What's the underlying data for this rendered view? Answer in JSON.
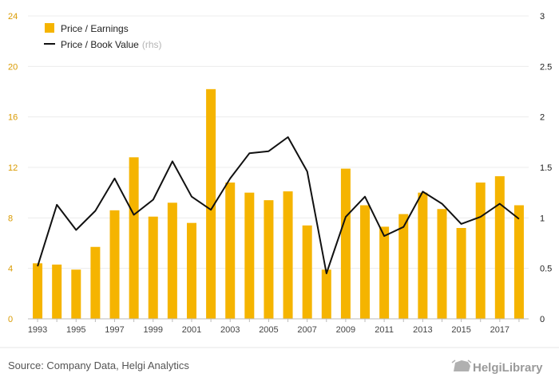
{
  "chart_data": {
    "type": "bar",
    "categories": [
      "1993",
      "1994",
      "1995",
      "1996",
      "1997",
      "1998",
      "1999",
      "2000",
      "2001",
      "2002",
      "2003",
      "2004",
      "2005",
      "2006",
      "2007",
      "2008",
      "2009",
      "2010",
      "2011",
      "2012",
      "2013",
      "2014",
      "2015",
      "2016",
      "2017",
      "2018"
    ],
    "x_tick_labels": [
      "1993",
      "1995",
      "1997",
      "1999",
      "2001",
      "2003",
      "2005",
      "2007",
      "2009",
      "2011",
      "2013",
      "2015",
      "2017"
    ],
    "series": [
      {
        "name": "Price / Earnings",
        "type": "bar",
        "axis": "left",
        "color": "#f5b400",
        "values": [
          4.4,
          4.3,
          3.9,
          5.7,
          8.6,
          12.8,
          8.1,
          9.2,
          7.6,
          18.2,
          10.8,
          10.0,
          9.4,
          10.1,
          7.4,
          3.9,
          11.9,
          9.0,
          7.3,
          8.3,
          10.0,
          8.7,
          7.2,
          10.8,
          11.3,
          9.0
        ]
      },
      {
        "name": "Price / Book Value",
        "legend_suffix": "(rhs)",
        "type": "line",
        "axis": "right",
        "color": "#111111",
        "values": [
          0.52,
          1.13,
          0.88,
          1.07,
          1.39,
          1.03,
          1.18,
          1.56,
          1.21,
          1.08,
          1.39,
          1.64,
          1.66,
          1.8,
          1.46,
          0.45,
          1.01,
          1.21,
          0.82,
          0.91,
          1.26,
          1.14,
          0.94,
          1.01,
          1.14,
          0.99
        ]
      }
    ],
    "y_left": {
      "ylim": [
        0,
        24
      ],
      "ticks": [
        0,
        4,
        8,
        12,
        16,
        20,
        24
      ],
      "color": "#d99a00"
    },
    "y_right": {
      "ylim": [
        0,
        3
      ],
      "tick_labels": [
        "0",
        "0.5",
        "1",
        "1.5",
        "2",
        "2.5",
        "3"
      ]
    },
    "grid": true,
    "legend_position": "top-left"
  },
  "footer": {
    "source": "Source: Company Data, Helgi Analytics",
    "logo": "HelgiLibrary"
  }
}
